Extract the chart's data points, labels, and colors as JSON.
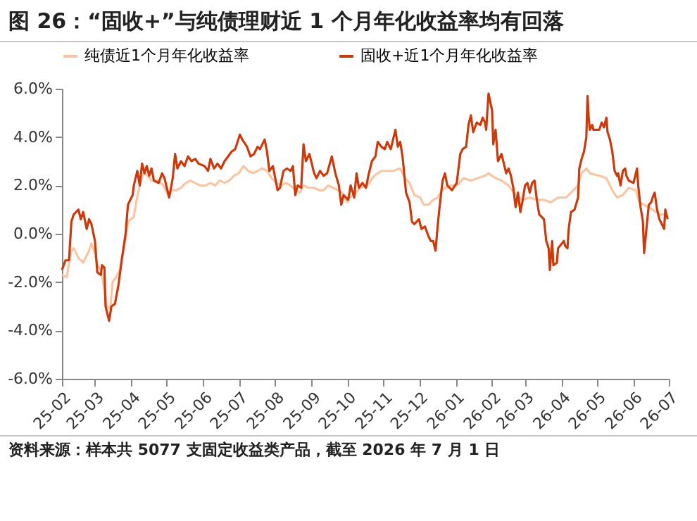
{
  "chart_data": {
    "type": "line",
    "title": "图 26：“固收+”与纯债理财近 1 个月年化收益率均有回落",
    "annotations": [
      "资料来源：样本共 5077 支固定收益类产品，截至 2026 年 7 月 1 日"
    ],
    "legend": "top",
    "marker": "none",
    "grid": false,
    "ylim": [
      -6,
      6
    ],
    "yticks": [
      {
        "value": -6,
        "label": "-6.0%"
      },
      {
        "value": -4,
        "label": "-4.0%"
      },
      {
        "value": -2,
        "label": "-2.0%"
      },
      {
        "value": 0,
        "label": "0.0%"
      },
      {
        "value": 2,
        "label": "2.0%"
      },
      {
        "value": 4,
        "label": "4.0%"
      },
      {
        "value": 6,
        "label": "6.0%"
      }
    ],
    "xlim": [
      "2025-02-01",
      "2026-07-01"
    ],
    "xticks": [
      {
        "value": "2025-02-01",
        "label": "25-02"
      },
      {
        "value": "2025-03-01",
        "label": "25-03"
      },
      {
        "value": "2025-04-01",
        "label": "25-04"
      },
      {
        "value": "2025-05-01",
        "label": "25-05"
      },
      {
        "value": "2025-06-01",
        "label": "25-06"
      },
      {
        "value": "2025-07-01",
        "label": "25-07"
      },
      {
        "value": "2025-08-01",
        "label": "25-08"
      },
      {
        "value": "2025-09-01",
        "label": "25-09"
      },
      {
        "value": "2025-10-01",
        "label": "25-10"
      },
      {
        "value": "2025-11-01",
        "label": "25-11"
      },
      {
        "value": "2025-12-01",
        "label": "25-12"
      },
      {
        "value": "2026-01-01",
        "label": "26-01"
      },
      {
        "value": "2026-02-01",
        "label": "26-02"
      },
      {
        "value": "2026-03-01",
        "label": "26-03"
      },
      {
        "value": "2026-04-01",
        "label": "26-04"
      },
      {
        "value": "2026-05-01",
        "label": "26-05"
      },
      {
        "value": "2026-06-01",
        "label": "26-06"
      },
      {
        "value": "2026-07-01",
        "label": "26-07"
      }
    ],
    "series": [
      {
        "name": "纯债近1个月年化收益率",
        "color": "#f8c6a3",
        "x": [
          "2025-02-01",
          "2025-02-05",
          "2025-02-09",
          "2025-02-11",
          "2025-02-15",
          "2025-02-19",
          "2025-02-24",
          "2025-02-26",
          "2025-03-01",
          "2025-03-03",
          "2025-03-06",
          "2025-03-09",
          "2025-03-11",
          "2025-03-14",
          "2025-03-16",
          "2025-03-19",
          "2025-03-22",
          "2025-03-25",
          "2025-03-27",
          "2025-03-29",
          "2025-04-03",
          "2025-04-05",
          "2025-04-08",
          "2025-04-11",
          "2025-04-15",
          "2025-04-18",
          "2025-04-24",
          "2025-04-28",
          "2025-05-02",
          "2025-05-05",
          "2025-05-09",
          "2025-05-13",
          "2025-05-17",
          "2025-05-21",
          "2025-05-25",
          "2025-05-29",
          "2025-06-03",
          "2025-06-07",
          "2025-06-11",
          "2025-06-15",
          "2025-06-19",
          "2025-06-23",
          "2025-06-27",
          "2025-07-01",
          "2025-07-05",
          "2025-07-09",
          "2025-07-13",
          "2025-07-17",
          "2025-07-21",
          "2025-07-25",
          "2025-07-29",
          "2025-08-02",
          "2025-08-06",
          "2025-08-10",
          "2025-08-14",
          "2025-08-18",
          "2025-08-22",
          "2025-08-25",
          "2025-08-29",
          "2025-09-03",
          "2025-09-07",
          "2025-09-11",
          "2025-09-15",
          "2025-09-19",
          "2025-09-23",
          "2025-09-27",
          "2025-10-01",
          "2025-10-02",
          "2025-10-07",
          "2025-10-12",
          "2025-10-18",
          "2025-10-24",
          "2025-10-30",
          "2025-11-04",
          "2025-11-09",
          "2025-11-15",
          "2025-11-19",
          "2025-11-23",
          "2025-11-27",
          "2025-12-02",
          "2025-12-05",
          "2025-12-09",
          "2025-12-13",
          "2025-12-17",
          "2025-12-20",
          "2025-12-24",
          "2025-12-28",
          "2026-01-02",
          "2026-01-08",
          "2026-01-14",
          "2026-01-20",
          "2026-01-26",
          "2026-01-29",
          "2026-02-04",
          "2026-02-09",
          "2026-02-15",
          "2026-02-21",
          "2026-02-27",
          "2026-03-05",
          "2026-03-11",
          "2026-03-17",
          "2026-03-23",
          "2026-03-29",
          "2026-04-05",
          "2026-04-11",
          "2026-04-15",
          "2026-04-18",
          "2026-04-22",
          "2026-04-25",
          "2026-05-03",
          "2026-05-09",
          "2026-05-14",
          "2026-05-18",
          "2026-05-23",
          "2026-05-28",
          "2026-06-03",
          "2026-06-06",
          "2026-06-10",
          "2026-06-14",
          "2026-06-17",
          "2026-06-23",
          "2026-06-30"
        ],
        "values": [
          -1.7,
          -1.8,
          -0.7,
          -0.6,
          -1.0,
          -1.2,
          -0.7,
          -0.4,
          -0.8,
          -1.3,
          -1.5,
          -2.3,
          -3.0,
          -3.1,
          -2.0,
          -1.8,
          -1.5,
          -0.7,
          -0.2,
          0.5,
          0.7,
          1.3,
          2.0,
          2.5,
          2.4,
          2.2,
          2.2,
          2.0,
          1.6,
          1.8,
          1.8,
          1.9,
          2.1,
          2.2,
          2.1,
          2.0,
          2.0,
          2.1,
          2.0,
          2.2,
          2.1,
          2.2,
          2.4,
          2.5,
          2.8,
          2.6,
          2.5,
          2.6,
          2.7,
          2.6,
          2.3,
          2.1,
          2.0,
          2.1,
          2.0,
          1.8,
          1.7,
          2.0,
          1.9,
          1.9,
          1.8,
          1.8,
          2.0,
          1.9,
          1.8,
          1.7,
          1.3,
          1.5,
          1.6,
          1.9,
          2.0,
          2.4,
          2.6,
          2.6,
          2.6,
          2.7,
          2.3,
          2.1,
          1.6,
          1.5,
          1.2,
          1.2,
          1.4,
          1.5,
          1.8,
          1.9,
          2.0,
          2.0,
          2.3,
          2.2,
          2.3,
          2.4,
          2.5,
          2.3,
          2.2,
          2.0,
          1.6,
          1.4,
          1.5,
          1.4,
          1.4,
          1.3,
          1.5,
          1.5,
          1.8,
          2.0,
          2.5,
          2.7,
          2.5,
          2.4,
          2.3,
          1.8,
          1.5,
          1.6,
          1.9,
          1.8,
          1.3,
          1.2,
          1.1,
          1.0,
          0.8,
          0.8
        ]
      },
      {
        "name": "固收+近1个月年化收益率",
        "color": "#cc3a0c",
        "x": [
          "2025-02-01",
          "2025-02-04",
          "2025-02-07",
          "2025-02-09",
          "2025-02-11",
          "2025-02-15",
          "2025-02-17",
          "2025-02-19",
          "2025-02-22",
          "2025-02-24",
          "2025-02-26",
          "2025-03-01",
          "2025-03-03",
          "2025-03-06",
          "2025-03-07",
          "2025-03-09",
          "2025-03-10",
          "2025-03-13",
          "2025-03-15",
          "2025-03-18",
          "2025-03-21",
          "2025-03-24",
          "2025-03-27",
          "2025-03-29",
          "2025-04-02",
          "2025-04-03",
          "2025-04-06",
          "2025-04-08",
          "2025-04-10",
          "2025-04-12",
          "2025-04-14",
          "2025-04-16",
          "2025-04-18",
          "2025-04-20",
          "2025-04-24",
          "2025-04-27",
          "2025-04-29",
          "2025-05-03",
          "2025-05-06",
          "2025-05-08",
          "2025-05-10",
          "2025-05-13",
          "2025-05-16",
          "2025-05-19",
          "2025-05-22",
          "2025-05-25",
          "2025-05-28",
          "2025-06-02",
          "2025-06-05",
          "2025-06-07",
          "2025-06-10",
          "2025-06-13",
          "2025-06-16",
          "2025-06-19",
          "2025-06-22",
          "2025-06-25",
          "2025-06-28",
          "2025-07-02",
          "2025-07-04",
          "2025-07-08",
          "2025-07-11",
          "2025-07-14",
          "2025-07-17",
          "2025-07-19",
          "2025-07-23",
          "2025-07-25",
          "2025-07-27",
          "2025-07-30",
          "2025-08-03",
          "2025-08-05",
          "2025-08-08",
          "2025-08-11",
          "2025-08-14",
          "2025-08-16",
          "2025-08-18",
          "2025-08-20",
          "2025-08-23",
          "2025-08-25",
          "2025-08-27",
          "2025-08-30",
          "2025-09-03",
          "2025-09-05",
          "2025-09-08",
          "2025-09-11",
          "2025-09-14",
          "2025-09-18",
          "2025-09-21",
          "2025-09-24",
          "2025-09-26",
          "2025-09-28",
          "2025-10-02",
          "2025-10-04",
          "2025-10-07",
          "2025-10-09",
          "2025-10-11",
          "2025-10-14",
          "2025-10-17",
          "2025-10-19",
          "2025-10-22",
          "2025-10-25",
          "2025-10-27",
          "2025-10-30",
          "2025-11-02",
          "2025-11-04",
          "2025-11-07",
          "2025-11-09",
          "2025-11-11",
          "2025-11-13",
          "2025-11-15",
          "2025-11-17",
          "2025-11-20",
          "2025-11-23",
          "2025-11-25",
          "2025-11-27",
          "2025-12-01",
          "2025-12-03",
          "2025-12-06",
          "2025-12-09",
          "2025-12-11",
          "2025-12-13",
          "2025-12-15",
          "2025-12-17",
          "2025-12-18",
          "2025-12-21",
          "2025-12-23",
          "2025-12-25",
          "2025-12-29",
          "2026-01-02",
          "2026-01-05",
          "2026-01-07",
          "2026-01-10",
          "2026-01-12",
          "2026-01-14",
          "2026-01-16",
          "2026-01-19",
          "2026-01-22",
          "2026-01-24",
          "2026-01-26",
          "2026-01-27",
          "2026-01-29",
          "2026-02-01",
          "2026-02-02",
          "2026-02-04",
          "2026-02-06",
          "2026-02-09",
          "2026-02-11",
          "2026-02-13",
          "2026-02-15",
          "2026-02-17",
          "2026-02-19",
          "2026-02-21",
          "2026-02-23",
          "2026-02-25",
          "2026-02-27",
          "2026-03-01",
          "2026-03-03",
          "2026-03-05",
          "2026-03-07",
          "2026-03-09",
          "2026-03-11",
          "2026-03-13",
          "2026-03-15",
          "2026-03-17",
          "2026-03-19",
          "2026-03-21",
          "2026-03-22",
          "2026-03-24",
          "2026-03-25",
          "2026-03-28",
          "2026-03-29",
          "2026-04-03",
          "2026-04-04",
          "2026-04-06",
          "2026-04-07",
          "2026-04-09",
          "2026-04-12",
          "2026-04-15",
          "2026-04-16",
          "2026-04-18",
          "2026-04-20",
          "2026-04-22",
          "2026-04-23",
          "2026-04-24",
          "2026-04-25",
          "2026-04-27",
          "2026-04-28",
          "2026-05-03",
          "2026-05-05",
          "2026-05-07",
          "2026-05-09",
          "2026-05-10",
          "2026-05-12",
          "2026-05-14",
          "2026-05-16",
          "2026-05-18",
          "2026-05-19",
          "2026-05-21",
          "2026-05-23",
          "2026-05-25",
          "2026-05-26",
          "2026-05-28",
          "2026-06-01",
          "2026-06-04",
          "2026-06-05",
          "2026-06-07",
          "2026-06-09",
          "2026-06-10",
          "2026-06-12",
          "2026-06-14",
          "2026-06-16",
          "2026-06-18",
          "2026-06-19",
          "2026-06-21",
          "2026-06-23",
          "2026-06-25",
          "2026-06-27",
          "2026-06-28",
          "2026-06-30"
        ],
        "values": [
          -1.5,
          -1.1,
          -1.1,
          0.5,
          0.8,
          1.0,
          0.6,
          0.9,
          0.2,
          0.6,
          0.4,
          -0.3,
          -1.6,
          -1.7,
          -1.3,
          -1.4,
          -3.0,
          -3.6,
          -3.0,
          -2.9,
          -2.1,
          -1.0,
          0.0,
          1.2,
          1.6,
          2.0,
          2.6,
          2.0,
          2.9,
          2.5,
          2.8,
          2.4,
          2.7,
          2.2,
          2.1,
          2.5,
          2.3,
          1.5,
          2.3,
          3.3,
          2.7,
          3.0,
          2.8,
          3.2,
          3.0,
          3.1,
          2.9,
          2.8,
          2.6,
          3.1,
          2.7,
          2.9,
          2.7,
          3.0,
          3.2,
          3.4,
          3.5,
          4.1,
          3.9,
          3.6,
          3.2,
          3.3,
          3.6,
          3.5,
          3.9,
          3.4,
          2.6,
          2.8,
          1.8,
          1.9,
          2.6,
          2.7,
          2.6,
          2.8,
          1.6,
          2.0,
          1.9,
          3.7,
          3.0,
          3.3,
          2.5,
          2.3,
          2.6,
          2.4,
          2.5,
          3.2,
          2.5,
          2.0,
          1.2,
          1.6,
          1.4,
          2.0,
          1.5,
          2.5,
          1.9,
          2.1,
          1.9,
          2.4,
          3.0,
          3.2,
          3.8,
          3.6,
          3.5,
          3.8,
          3.5,
          3.9,
          4.3,
          3.6,
          3.8,
          3.2,
          1.7,
          1.3,
          0.5,
          0.4,
          0.6,
          0.2,
          0.3,
          -0.1,
          -0.3,
          -0.3,
          -0.7,
          0.4,
          0.9,
          2.2,
          2.5,
          2.0,
          1.8,
          2.1,
          3.3,
          3.5,
          3.6,
          4.5,
          4.9,
          4.2,
          4.6,
          4.5,
          4.8,
          4.6,
          4.3,
          5.8,
          5.1,
          3.7,
          4.3,
          3.0,
          3.3,
          2.9,
          2.5,
          2.7,
          2.4,
          1.9,
          1.1,
          1.7,
          0.9,
          1.4,
          2.0,
          2.1,
          1.7,
          2.1,
          2.2,
          1.4,
          0.8,
          0.7,
          0.6,
          -0.3,
          -0.6,
          -1.5,
          -0.3,
          -1.3,
          -1.2,
          -0.6,
          -0.3,
          -0.5,
          -0.6,
          0.2,
          0.9,
          1.0,
          1.5,
          2.7,
          3.1,
          3.4,
          4.0,
          5.7,
          4.8,
          4.3,
          4.5,
          4.3,
          4.3,
          4.6,
          4.4,
          4.8,
          4.2,
          3.9,
          3.4,
          2.6,
          2.4,
          2.5,
          2.0,
          2.6,
          2.7,
          2.4,
          2.2,
          2.1,
          2.7,
          2.0,
          1.1,
          0.5,
          -0.8,
          0.2,
          1.2,
          1.3,
          1.6,
          1.7,
          1.0,
          0.6,
          0.4,
          0.2,
          1.0,
          0.6
        ]
      }
    ]
  }
}
